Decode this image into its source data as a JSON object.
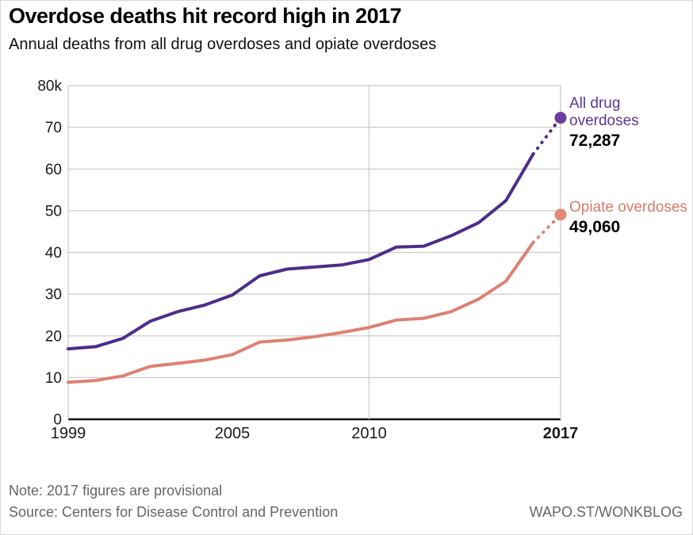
{
  "header": {
    "title": "Overdose deaths hit record high in 2017",
    "subtitle": "Annual deaths from all drug overdoses and opiate overdoses"
  },
  "chart_data": {
    "type": "line",
    "x": [
      1999,
      2000,
      2001,
      2002,
      2003,
      2004,
      2005,
      2006,
      2007,
      2008,
      2009,
      2010,
      2011,
      2012,
      2013,
      2014,
      2015,
      2016,
      2017
    ],
    "series": [
      {
        "name": "All drug overdoses",
        "values": [
          16900,
          17400,
          19400,
          23500,
          25800,
          27400,
          29800,
          34400,
          36000,
          36500,
          37000,
          38300,
          41300,
          41500,
          44000,
          47100,
          52400,
          63600,
          72287
        ],
        "end_value_label": "72,287",
        "line_color": "#4e2d8a",
        "dot_color": "#6a3d9e",
        "label_color": "#5b3794"
      },
      {
        "name": "Opiate overdoses",
        "values": [
          8900,
          9300,
          10400,
          12700,
          13400,
          14200,
          15500,
          18500,
          19000,
          19800,
          20800,
          22000,
          23800,
          24200,
          25800,
          28800,
          33100,
          42400,
          49060
        ],
        "end_value_label": "49,060",
        "line_color": "#de8173",
        "dot_color": "#e18a77",
        "label_color": "#d97c6e"
      }
    ],
    "provisional_from_year": 2016,
    "ylim": [
      0,
      80000
    ],
    "y_ticks": [
      {
        "value": 80000,
        "label": "80k"
      },
      {
        "value": 70000,
        "label": "70"
      },
      {
        "value": 60000,
        "label": "60"
      },
      {
        "value": 50000,
        "label": "50"
      },
      {
        "value": 40000,
        "label": "40"
      },
      {
        "value": 30000,
        "label": "30"
      },
      {
        "value": 20000,
        "label": "20"
      },
      {
        "value": 10000,
        "label": "10"
      },
      {
        "value": 0,
        "label": "0"
      }
    ],
    "x_ticks": [
      {
        "value": 1999,
        "label": "1999",
        "bold": false
      },
      {
        "value": 2005,
        "label": "2005",
        "bold": false
      },
      {
        "value": 2010,
        "label": "2010",
        "bold": false
      },
      {
        "value": 2017,
        "label": "2017",
        "bold": true
      }
    ],
    "grid": {
      "horizontal": true,
      "vertical_at": [
        2010
      ],
      "color": "#cccccc"
    },
    "axis_color": "#111111",
    "tick_text_color": "#1a1a1a",
    "legend_position": "right-of-line-ends"
  },
  "footer": {
    "note": "Note: 2017 figures are provisional",
    "source": "Source: Centers for Disease Control and Prevention",
    "credit": "WAPO.ST/WONKBLOG"
  }
}
